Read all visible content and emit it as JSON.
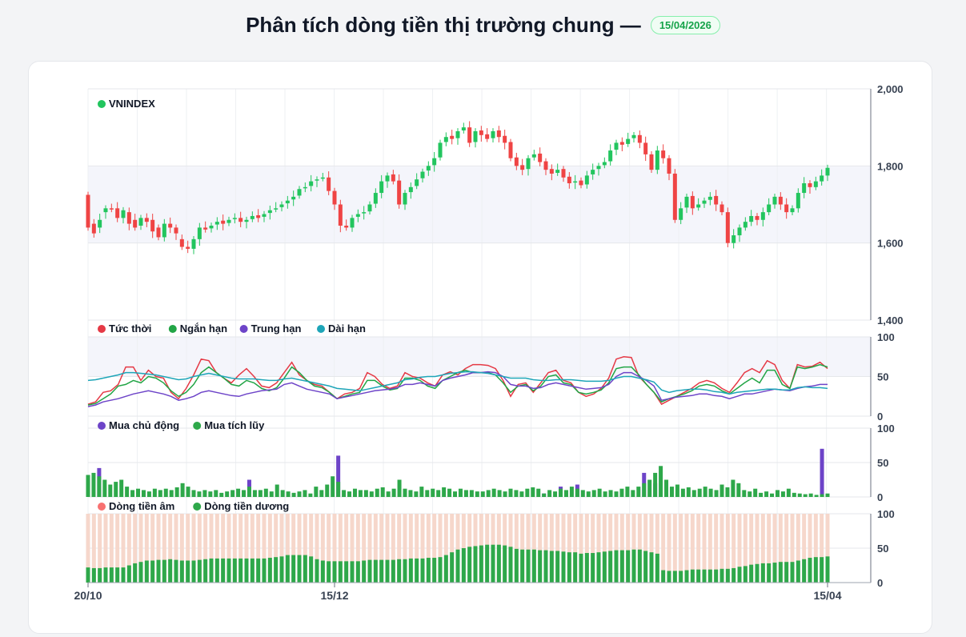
{
  "header": {
    "title": "Phân tích dòng tiền thị trường chung —",
    "date_badge": "15/04/2026"
  },
  "colors": {
    "up": "#22c55e",
    "down": "#ef4444",
    "red": "#e53945",
    "green": "#22a546",
    "purple": "#6d44c8",
    "teal": "#1ea5b8",
    "salmon": "#f6d7cb",
    "bar_green": "#2ea84a"
  },
  "chart_data": [
    {
      "type": "candlestick",
      "legend": "VNINDEX",
      "ylim": [
        1400,
        2000
      ],
      "yticks": [
        "2,000",
        "1,800",
        "1,600",
        "1,400"
      ],
      "closes": [
        1640,
        1625,
        1660,
        1690,
        1688,
        1665,
        1685,
        1650,
        1640,
        1665,
        1655,
        1630,
        1615,
        1650,
        1640,
        1625,
        1590,
        1585,
        1610,
        1640,
        1635,
        1645,
        1655,
        1650,
        1660,
        1665,
        1655,
        1660,
        1670,
        1665,
        1675,
        1685,
        1690,
        1700,
        1710,
        1720,
        1740,
        1745,
        1760,
        1765,
        1770,
        1735,
        1700,
        1645,
        1640,
        1665,
        1675,
        1680,
        1700,
        1730,
        1760,
        1775,
        1760,
        1700,
        1730,
        1745,
        1765,
        1785,
        1800,
        1820,
        1860,
        1875,
        1870,
        1890,
        1900,
        1860,
        1890,
        1880,
        1870,
        1890,
        1875,
        1860,
        1820,
        1800,
        1790,
        1820,
        1830,
        1810,
        1790,
        1780,
        1790,
        1770,
        1755,
        1760,
        1750,
        1775,
        1790,
        1800,
        1810,
        1840,
        1860,
        1855,
        1870,
        1880,
        1860,
        1830,
        1790,
        1840,
        1820,
        1780,
        1660,
        1690,
        1720,
        1690,
        1700,
        1710,
        1720,
        1700,
        1680,
        1600,
        1620,
        1640,
        1655,
        1670,
        1660,
        1680,
        1700,
        1720,
        1700,
        1680,
        1690,
        1730,
        1755,
        1745,
        1760,
        1775,
        1795
      ],
      "opens": [
        1725,
        1650,
        1640,
        1680,
        1690,
        1690,
        1665,
        1680,
        1660,
        1645,
        1665,
        1660,
        1640,
        1615,
        1650,
        1640,
        1610,
        1590,
        1585,
        1610,
        1640,
        1638,
        1648,
        1658,
        1652,
        1662,
        1665,
        1655,
        1662,
        1672,
        1668,
        1678,
        1688,
        1693,
        1703,
        1713,
        1723,
        1743,
        1748,
        1762,
        1768,
        1770,
        1735,
        1700,
        1645,
        1640,
        1668,
        1678,
        1682,
        1702,
        1730,
        1760,
        1778,
        1762,
        1700,
        1732,
        1748,
        1768,
        1788,
        1802,
        1822,
        1862,
        1878,
        1872,
        1892,
        1900,
        1862,
        1892,
        1882,
        1872,
        1892,
        1878,
        1862,
        1822,
        1802,
        1792,
        1822,
        1832,
        1812,
        1792,
        1782,
        1792,
        1772,
        1757,
        1762,
        1752,
        1778,
        1792,
        1802,
        1812,
        1842,
        1862,
        1857,
        1872,
        1880,
        1860,
        1830,
        1790,
        1840,
        1820,
        1780,
        1660,
        1692,
        1722,
        1692,
        1702,
        1712,
        1722,
        1700,
        1680,
        1600,
        1620,
        1640,
        1655,
        1670,
        1660,
        1680,
        1700,
        1720,
        1700,
        1680,
        1690,
        1730,
        1755,
        1745,
        1760,
        1775
      ]
    },
    {
      "type": "line",
      "ylim": [
        0,
        100
      ],
      "yticks": [
        "100",
        "50",
        "0"
      ],
      "series": [
        {
          "name": "Tức thời",
          "values": [
            15,
            18,
            30,
            32,
            40,
            62,
            62,
            45,
            58,
            50,
            48,
            30,
            22,
            35,
            52,
            72,
            70,
            55,
            48,
            42,
            52,
            60,
            50,
            38,
            36,
            42,
            55,
            68,
            52,
            45,
            40,
            38,
            30,
            22,
            28,
            30,
            35,
            55,
            50,
            40,
            35,
            38,
            55,
            50,
            48,
            42,
            38,
            52,
            56,
            52,
            60,
            65,
            65,
            64,
            60,
            45,
            25,
            40,
            42,
            30,
            42,
            55,
            58,
            45,
            42,
            30,
            25,
            28,
            35,
            48,
            72,
            75,
            74,
            50,
            40,
            30,
            15,
            20,
            25,
            30,
            35,
            42,
            45,
            42,
            35,
            30,
            42,
            55,
            60,
            55,
            70,
            65,
            45,
            35,
            65,
            62,
            63,
            68,
            60
          ]
        },
        {
          "name": "Ngắn hạn",
          "values": [
            14,
            16,
            22,
            28,
            38,
            40,
            45,
            42,
            50,
            48,
            42,
            32,
            25,
            30,
            40,
            55,
            62,
            55,
            48,
            40,
            38,
            45,
            42,
            35,
            32,
            36,
            48,
            62,
            55,
            45,
            38,
            36,
            30,
            22,
            25,
            28,
            30,
            45,
            45,
            38,
            33,
            35,
            48,
            48,
            45,
            38,
            35,
            45,
            50,
            55,
            58,
            55,
            55,
            55,
            52,
            42,
            30,
            38,
            40,
            32,
            38,
            50,
            52,
            42,
            40,
            30,
            28,
            30,
            33,
            42,
            60,
            62,
            62,
            52,
            40,
            30,
            18,
            22,
            25,
            28,
            32,
            38,
            40,
            38,
            32,
            28,
            35,
            42,
            48,
            42,
            58,
            58,
            40,
            35,
            62,
            60,
            62,
            65,
            62
          ]
        },
        {
          "name": "Trung hạn",
          "values": [
            12,
            14,
            18,
            20,
            22,
            25,
            28,
            30,
            32,
            30,
            28,
            25,
            20,
            22,
            25,
            30,
            32,
            30,
            28,
            26,
            25,
            28,
            30,
            32,
            33,
            34,
            40,
            42,
            38,
            34,
            32,
            30,
            28,
            22,
            24,
            26,
            28,
            30,
            32,
            33,
            34,
            36,
            40,
            40,
            42,
            40,
            38,
            45,
            48,
            50,
            52,
            55,
            55,
            56,
            55,
            50,
            40,
            38,
            38,
            35,
            36,
            40,
            42,
            40,
            38,
            36,
            34,
            35,
            36,
            40,
            50,
            55,
            55,
            50,
            45,
            38,
            20,
            22,
            24,
            25,
            26,
            28,
            28,
            26,
            25,
            22,
            25,
            28,
            28,
            30,
            32,
            34,
            33,
            32,
            35,
            37,
            38,
            40,
            40
          ]
        },
        {
          "name": "Dài hạn",
          "values": [
            45,
            46,
            48,
            50,
            52,
            55,
            55,
            54,
            53,
            52,
            50,
            48,
            46,
            47,
            50,
            52,
            54,
            52,
            50,
            48,
            47,
            47,
            47,
            46,
            45,
            45,
            47,
            48,
            46,
            44,
            42,
            40,
            38,
            35,
            34,
            33,
            32,
            34,
            36,
            38,
            40,
            42,
            46,
            47,
            49,
            50,
            50,
            52,
            54,
            55,
            56,
            56,
            55,
            54,
            52,
            50,
            48,
            48,
            48,
            46,
            45,
            45,
            46,
            46,
            46,
            45,
            44,
            44,
            44,
            45,
            48,
            50,
            50,
            48,
            46,
            43,
            33,
            30,
            32,
            33,
            34,
            34,
            33,
            31,
            30,
            28,
            30,
            31,
            32,
            33,
            34,
            34,
            33,
            33,
            36,
            37,
            36,
            36,
            35
          ]
        }
      ]
    },
    {
      "type": "bar",
      "ylim": [
        0,
        100
      ],
      "yticks": [
        "100",
        "50",
        "0"
      ],
      "series": [
        {
          "name": "Mua chủ động",
          "values": [
            0,
            0,
            42,
            0,
            0,
            0,
            0,
            0,
            0,
            0,
            0,
            0,
            0,
            0,
            0,
            0,
            0,
            0,
            0,
            0,
            0,
            0,
            0,
            0,
            0,
            0,
            0,
            0,
            0,
            25,
            0,
            0,
            0,
            0,
            0,
            0,
            0,
            0,
            0,
            0,
            0,
            0,
            0,
            0,
            0,
            60,
            0,
            0,
            0,
            0,
            0,
            0,
            0,
            0,
            0,
            0,
            0,
            0,
            0,
            0,
            0,
            0,
            0,
            0,
            0,
            0,
            0,
            0,
            0,
            0,
            0,
            0,
            0,
            0,
            0,
            0,
            0,
            0,
            0,
            0,
            0,
            0,
            5,
            0,
            0,
            15,
            0,
            0,
            18,
            0,
            0,
            0,
            0,
            0,
            0,
            0,
            0,
            0,
            0,
            0,
            35,
            0,
            20,
            0,
            0,
            0,
            0,
            0,
            0,
            0,
            0,
            0,
            0,
            0,
            0,
            0,
            0,
            0,
            0,
            0,
            0,
            0,
            0,
            0,
            0,
            0,
            0,
            0,
            0,
            0,
            0,
            0,
            70,
            0,
            0,
            0,
            0,
            0,
            0,
            0,
            0,
            0,
            0,
            0,
            0,
            0,
            38,
            0,
            0,
            0,
            0,
            0,
            0,
            0,
            0,
            0,
            0,
            0,
            18,
            0,
            0,
            0,
            0,
            0,
            0,
            0,
            0,
            0,
            0,
            0,
            0,
            0,
            0
          ]
        },
        {
          "name": "Mua tích lũy",
          "values": [
            32,
            35,
            30,
            25,
            18,
            22,
            25,
            15,
            10,
            12,
            10,
            8,
            12,
            10,
            12,
            10,
            14,
            20,
            15,
            10,
            8,
            10,
            8,
            10,
            6,
            8,
            10,
            12,
            10,
            15,
            10,
            10,
            12,
            8,
            18,
            10,
            8,
            6,
            8,
            10,
            5,
            15,
            10,
            18,
            30,
            22,
            10,
            8,
            12,
            10,
            10,
            8,
            12,
            14,
            8,
            12,
            25,
            12,
            10,
            8,
            15,
            10,
            12,
            10,
            14,
            12,
            8,
            12,
            10,
            10,
            8,
            8,
            10,
            12,
            10,
            8,
            12,
            10,
            8,
            12,
            14,
            12,
            5,
            10,
            8,
            12,
            10,
            15,
            12,
            10,
            8,
            10,
            12,
            8,
            10,
            8,
            12,
            15,
            10,
            15,
            20,
            25,
            35,
            45,
            25,
            15,
            18,
            12,
            14,
            10,
            12,
            15,
            12,
            10,
            18,
            14,
            25,
            20,
            10,
            8,
            12,
            6,
            8,
            5,
            10,
            8,
            12,
            6,
            5,
            4,
            5,
            3,
            4,
            5
          ]
        }
      ]
    },
    {
      "type": "stacked-bar",
      "ylim": [
        0,
        100
      ],
      "yticks": [
        "100",
        "50",
        "0"
      ],
      "series": [
        {
          "name": "Dòng tiền âm",
          "values": []
        },
        {
          "name": "Dòng tiền dương",
          "values": [
            22,
            21,
            21,
            22,
            22,
            22,
            22,
            25,
            28,
            30,
            32,
            32,
            33,
            33,
            34,
            33,
            32,
            32,
            32,
            33,
            34,
            35,
            35,
            35,
            35,
            35,
            35,
            35,
            35,
            35,
            35,
            36,
            37,
            38,
            40,
            40,
            40,
            40,
            38,
            34,
            32,
            31,
            31,
            31,
            31,
            31,
            31,
            32,
            33,
            33,
            33,
            33,
            33,
            34,
            34,
            35,
            35,
            35,
            36,
            36,
            37,
            40,
            44,
            48,
            50,
            52,
            53,
            54,
            55,
            55,
            55,
            54,
            52,
            49,
            48,
            48,
            48,
            47,
            47,
            46,
            46,
            45,
            44,
            44,
            42,
            43,
            43,
            44,
            45,
            46,
            47,
            47,
            47,
            48,
            48,
            46,
            44,
            42,
            18,
            17,
            17,
            17,
            18,
            19,
            19,
            19,
            19,
            19,
            20,
            20,
            21,
            23,
            24,
            26,
            27,
            28,
            28,
            29,
            30,
            30,
            30,
            32,
            34,
            36,
            37,
            37,
            38
          ]
        }
      ]
    }
  ],
  "legends": {
    "p1": [
      "VNINDEX"
    ],
    "p2": [
      "Tức thời",
      "Ngắn hạn",
      "Trung hạn",
      "Dài hạn"
    ],
    "p3": [
      "Mua chủ động",
      "Mua tích lũy"
    ],
    "p4": [
      "Dòng tiền âm",
      "Dòng tiền dương"
    ]
  },
  "x_labels": [
    "20/10",
    "15/12",
    "15/04"
  ]
}
